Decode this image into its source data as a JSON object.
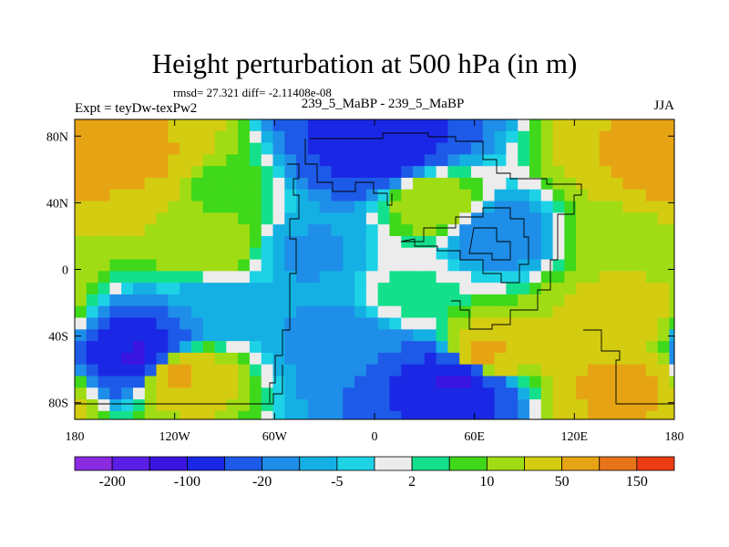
{
  "chart_data": {
    "type": "heatmap",
    "title": "Height perturbation at 500 hPa (in m)",
    "stats_text": "rmsd= 27.321  diff= -2.11408e-08",
    "left_label": "Expt = teyDw-texPw2",
    "center_label": "239_5_MaBP - 239_5_MaBP",
    "right_label": "JJA",
    "xlim": [
      -180,
      180
    ],
    "ylim": [
      -90,
      90
    ],
    "x_ticks": [
      {
        "value": -180,
        "label": "180"
      },
      {
        "value": -120,
        "label": "120W"
      },
      {
        "value": -60,
        "label": "60W"
      },
      {
        "value": 0,
        "label": "0"
      },
      {
        "value": 60,
        "label": "60E"
      },
      {
        "value": 120,
        "label": "120E"
      },
      {
        "value": 180,
        "label": "180"
      }
    ],
    "y_ticks": [
      {
        "value": 80,
        "label": "80N"
      },
      {
        "value": 40,
        "label": "40N"
      },
      {
        "value": 0,
        "label": "0"
      },
      {
        "value": -40,
        "label": "40S"
      },
      {
        "value": -80,
        "label": "80S"
      }
    ],
    "colorbar": {
      "levels": [
        -200,
        -150,
        -100,
        -50,
        -20,
        -10,
        -5,
        -2,
        2,
        5,
        10,
        20,
        50,
        100,
        150
      ],
      "labels": [
        "-200",
        "-100",
        "-20",
        "-5",
        "2",
        "10",
        "50",
        "150"
      ],
      "colors": [
        "#8a2be2",
        "#5a1ee6",
        "#3a14e0",
        "#1a28e6",
        "#1e5ae8",
        "#1e8ee8",
        "#14b0e4",
        "#1ed2e6",
        "#ececec",
        "#14e08c",
        "#40d81a",
        "#a0dc14",
        "#d4cc10",
        "#e6a414",
        "#e8741a",
        "#ec3c14"
      ]
    },
    "field_features": [
      {
        "lon": -145,
        "lat": 68,
        "value": 60
      },
      {
        "lon": 175,
        "lat": 62,
        "value": 70
      },
      {
        "lon": 0,
        "lat": 75,
        "value": -90
      },
      {
        "lon": -140,
        "lat": -52,
        "value": -110
      },
      {
        "lon": -120,
        "lat": -62,
        "value": 60
      },
      {
        "lon": 50,
        "lat": -65,
        "value": -110
      },
      {
        "lon": 65,
        "lat": -52,
        "value": 60
      },
      {
        "lon": 148,
        "lat": -72,
        "value": 60
      },
      {
        "lon": 75,
        "lat": 22,
        "value": -20
      },
      {
        "lon": 20,
        "lat": -15,
        "value": 4
      },
      {
        "lon": -90,
        "lat": 48,
        "value": 6
      },
      {
        "lon": -100,
        "lat": 15,
        "value": 20
      },
      {
        "lon": 150,
        "lat": 20,
        "value": 12
      },
      {
        "lon": 150,
        "lat": -25,
        "value": 30
      },
      {
        "lon": -20,
        "lat": -42,
        "value": -15
      },
      {
        "lon": -40,
        "lat": 10,
        "value": -12
      },
      {
        "lon": -95,
        "lat": -20,
        "value": -8
      },
      {
        "lon": 35,
        "lat": 40,
        "value": 20
      }
    ]
  }
}
